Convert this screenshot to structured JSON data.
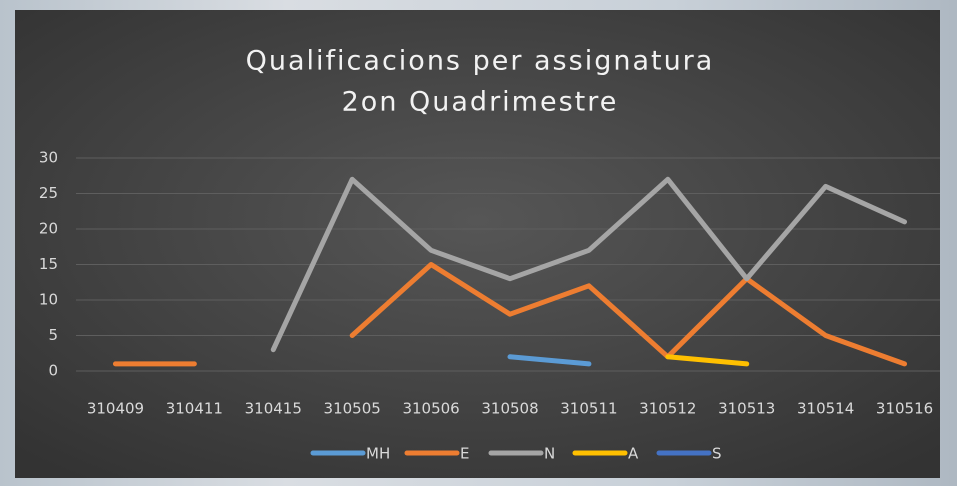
{
  "chart_data": {
    "type": "line",
    "title": [
      "Qualificacions per assignatura",
      "2on Quadrimestre"
    ],
    "categories": [
      "310409",
      "310411",
      "310415",
      "310505",
      "310506",
      "310508",
      "310511",
      "310512",
      "310513",
      "310514",
      "310516"
    ],
    "series": [
      {
        "name": "MH",
        "color": "#5b9bd5",
        "values": [
          null,
          null,
          null,
          null,
          null,
          2,
          1,
          null,
          null,
          null,
          null
        ]
      },
      {
        "name": "E",
        "color": "#ed7d31",
        "values": [
          1,
          1,
          null,
          5,
          15,
          8,
          12,
          2,
          13,
          5,
          1
        ]
      },
      {
        "name": "N",
        "color": "#a5a5a5",
        "values": [
          null,
          null,
          3,
          27,
          17,
          13,
          17,
          27,
          13,
          26,
          21
        ]
      },
      {
        "name": "A",
        "color": "#ffc000",
        "values": [
          null,
          null,
          null,
          null,
          null,
          null,
          null,
          2,
          1,
          null,
          null
        ]
      },
      {
        "name": "S",
        "color": "#4472c4",
        "values": [
          null,
          null,
          null,
          null,
          null,
          null,
          null,
          null,
          null,
          null,
          null
        ]
      }
    ],
    "ylim": [
      0,
      30
    ],
    "yticks": [
      0,
      5,
      10,
      15,
      20,
      25,
      30
    ],
    "grid": true,
    "legend": "bottom"
  }
}
